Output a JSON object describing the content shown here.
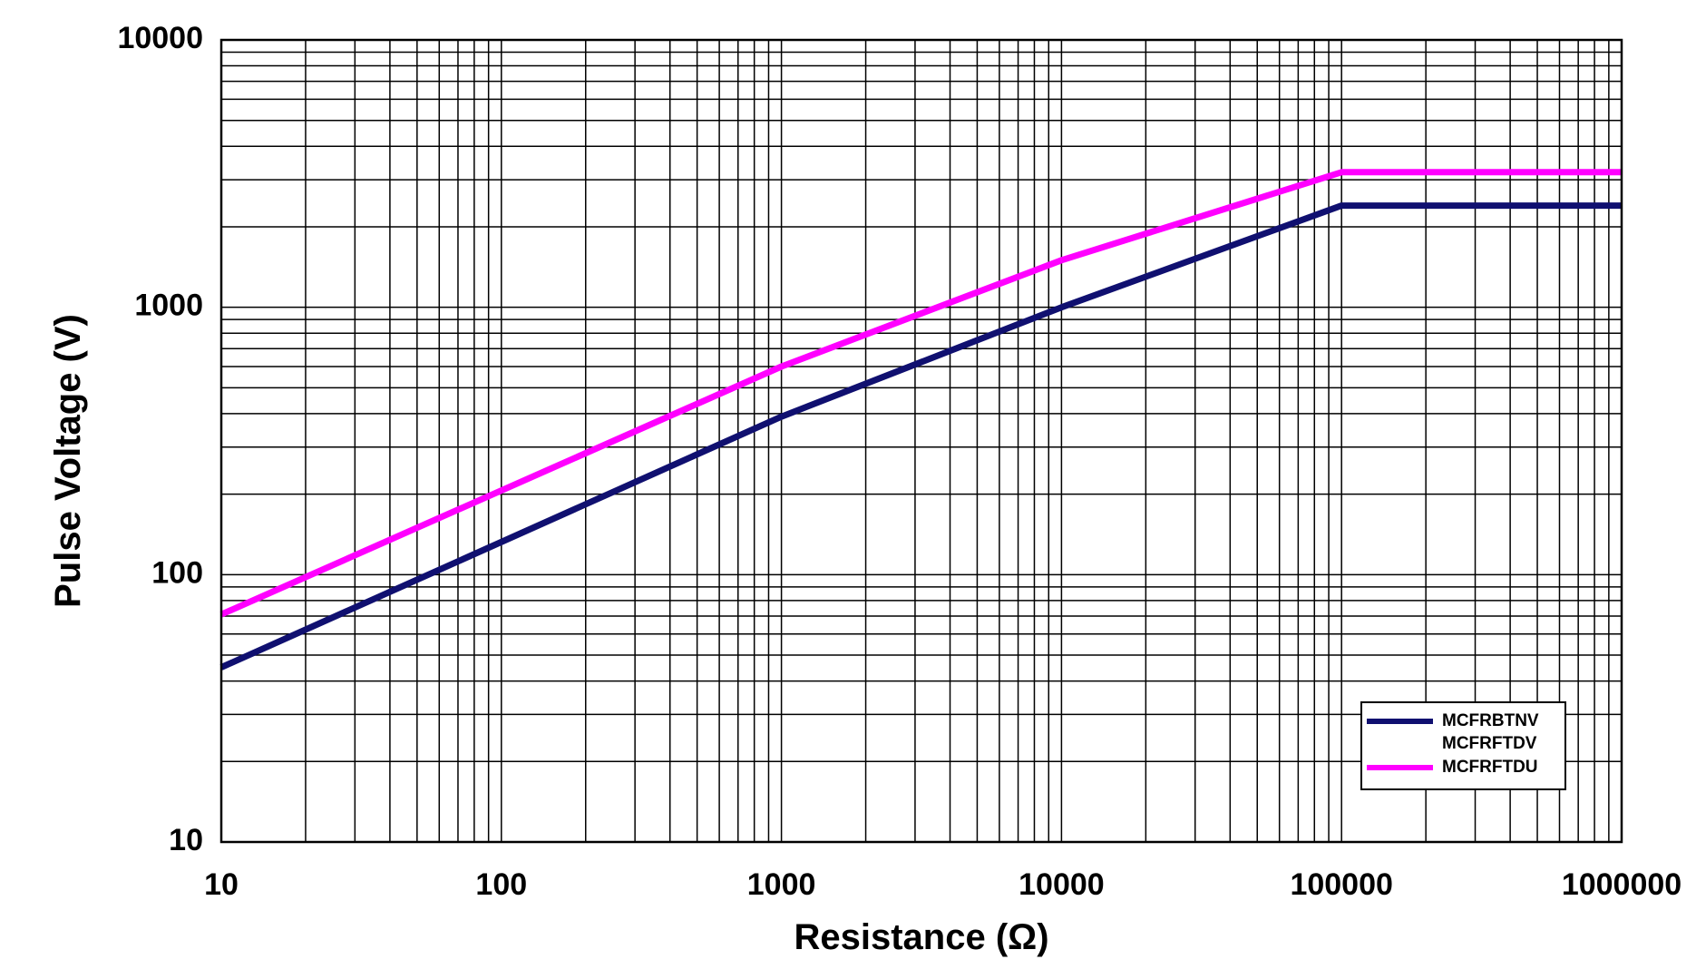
{
  "chart_data": {
    "type": "line",
    "title": "",
    "xlabel": "Resistance (Ω)",
    "ylabel": "Pulse Voltage (V)",
    "xscale": "log",
    "yscale": "log",
    "xlim": [
      10,
      1000000
    ],
    "ylim": [
      10,
      10000
    ],
    "grid": true,
    "legend_position": "bottom-right",
    "x_tick_labels": [
      "10",
      "100",
      "1000",
      "10000",
      "100000",
      "1000000"
    ],
    "y_tick_labels": [
      "10",
      "100",
      "1000",
      "10000"
    ],
    "series": [
      {
        "name": "MCFRBTNV",
        "name2": "MCFRFTDV",
        "color": "#101070",
        "x": [
          10,
          1000,
          10000,
          100000,
          1000000
        ],
        "y": [
          45,
          390,
          1000,
          2400,
          2400
        ]
      },
      {
        "name": "MCFRFTDU",
        "color": "#ff00ff",
        "x": [
          10,
          1000,
          10000,
          100000,
          1000000
        ],
        "y": [
          71,
          600,
          1500,
          3200,
          3200
        ]
      }
    ]
  }
}
